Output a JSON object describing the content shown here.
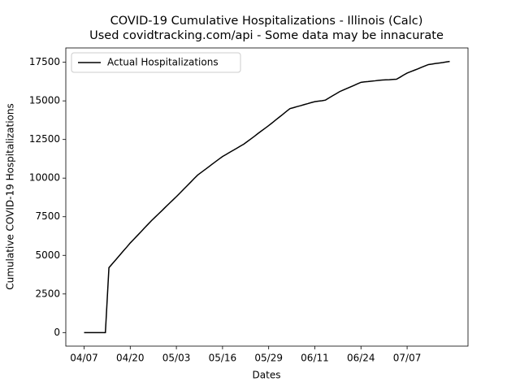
{
  "chart_data": {
    "type": "line",
    "title": "COVID-19 Cumulative Hospitalizations - Illinois (Calc)",
    "subtitle": "Used covidtracking.com/api - Some data may be innacurate",
    "x_label": "Dates",
    "y_label": "Cumulative COVID-19 Hospitalizations",
    "x": [
      "04/07",
      "04/08",
      "04/09",
      "04/10",
      "04/11",
      "04/12",
      "04/13",
      "04/14",
      "04/15",
      "04/16",
      "04/17",
      "04/18",
      "04/19",
      "04/20",
      "04/21",
      "04/22",
      "04/23",
      "04/24",
      "04/25",
      "04/26",
      "04/27",
      "04/28",
      "04/29",
      "04/30",
      "05/01",
      "05/02",
      "05/03",
      "05/04",
      "05/05",
      "05/06",
      "05/07",
      "05/08",
      "05/09",
      "05/10",
      "05/11",
      "05/12",
      "05/13",
      "05/14",
      "05/15",
      "05/16",
      "05/17",
      "05/18",
      "05/19",
      "05/20",
      "05/21",
      "05/22",
      "05/23",
      "05/24",
      "05/25",
      "05/26",
      "05/27",
      "05/28",
      "05/29",
      "05/30",
      "05/31",
      "06/01",
      "06/02",
      "06/03",
      "06/04",
      "06/05",
      "06/06",
      "06/07",
      "06/08",
      "06/09",
      "06/10",
      "06/11",
      "06/12",
      "06/13",
      "06/14",
      "06/15",
      "06/16",
      "06/17",
      "06/18",
      "06/19",
      "06/20",
      "06/21",
      "06/22",
      "06/23",
      "06/24",
      "06/25",
      "06/26",
      "06/27",
      "06/28",
      "06/29",
      "06/30",
      "07/01",
      "07/02",
      "07/03",
      "07/04",
      "07/05",
      "07/06",
      "07/07",
      "07/08",
      "07/09",
      "07/10",
      "07/11",
      "07/12",
      "07/13",
      "07/14",
      "07/15",
      "07/16",
      "07/17",
      "07/18",
      "07/19"
    ],
    "series": [
      {
        "name": "Actual Hospitalizations",
        "color": "#000000",
        "values": [
          0,
          0,
          0,
          0,
          0,
          0,
          0,
          4200,
          4470,
          4730,
          5000,
          5270,
          5530,
          5800,
          6040,
          6280,
          6520,
          6770,
          7010,
          7250,
          7470,
          7690,
          7910,
          8140,
          8360,
          8580,
          8800,
          9030,
          9270,
          9500,
          9730,
          9970,
          10200,
          10370,
          10540,
          10710,
          10890,
          11060,
          11230,
          11400,
          11530,
          11670,
          11800,
          11930,
          12070,
          12200,
          12370,
          12540,
          12710,
          12890,
          13060,
          13230,
          13400,
          13580,
          13770,
          13950,
          14130,
          14320,
          14500,
          14560,
          14630,
          14690,
          14760,
          14820,
          14890,
          14950,
          14980,
          15010,
          15050,
          15190,
          15330,
          15460,
          15600,
          15700,
          15800,
          15900,
          16000,
          16100,
          16200,
          16230,
          16250,
          16280,
          16300,
          16330,
          16350,
          16360,
          16370,
          16390,
          16400,
          16530,
          16670,
          16800,
          16890,
          16980,
          17070,
          17170,
          17260,
          17350,
          17380,
          17420,
          17450,
          17480,
          17520,
          17550
        ]
      }
    ],
    "xticks": [
      "04/07",
      "04/20",
      "05/03",
      "05/16",
      "05/29",
      "06/11",
      "06/24",
      "07/07"
    ],
    "ylim": [
      -877,
      18427
    ],
    "yticks": [
      0,
      2500,
      5000,
      7500,
      10000,
      12500,
      15000,
      17500
    ],
    "legend": "upper left",
    "grid": false
  }
}
